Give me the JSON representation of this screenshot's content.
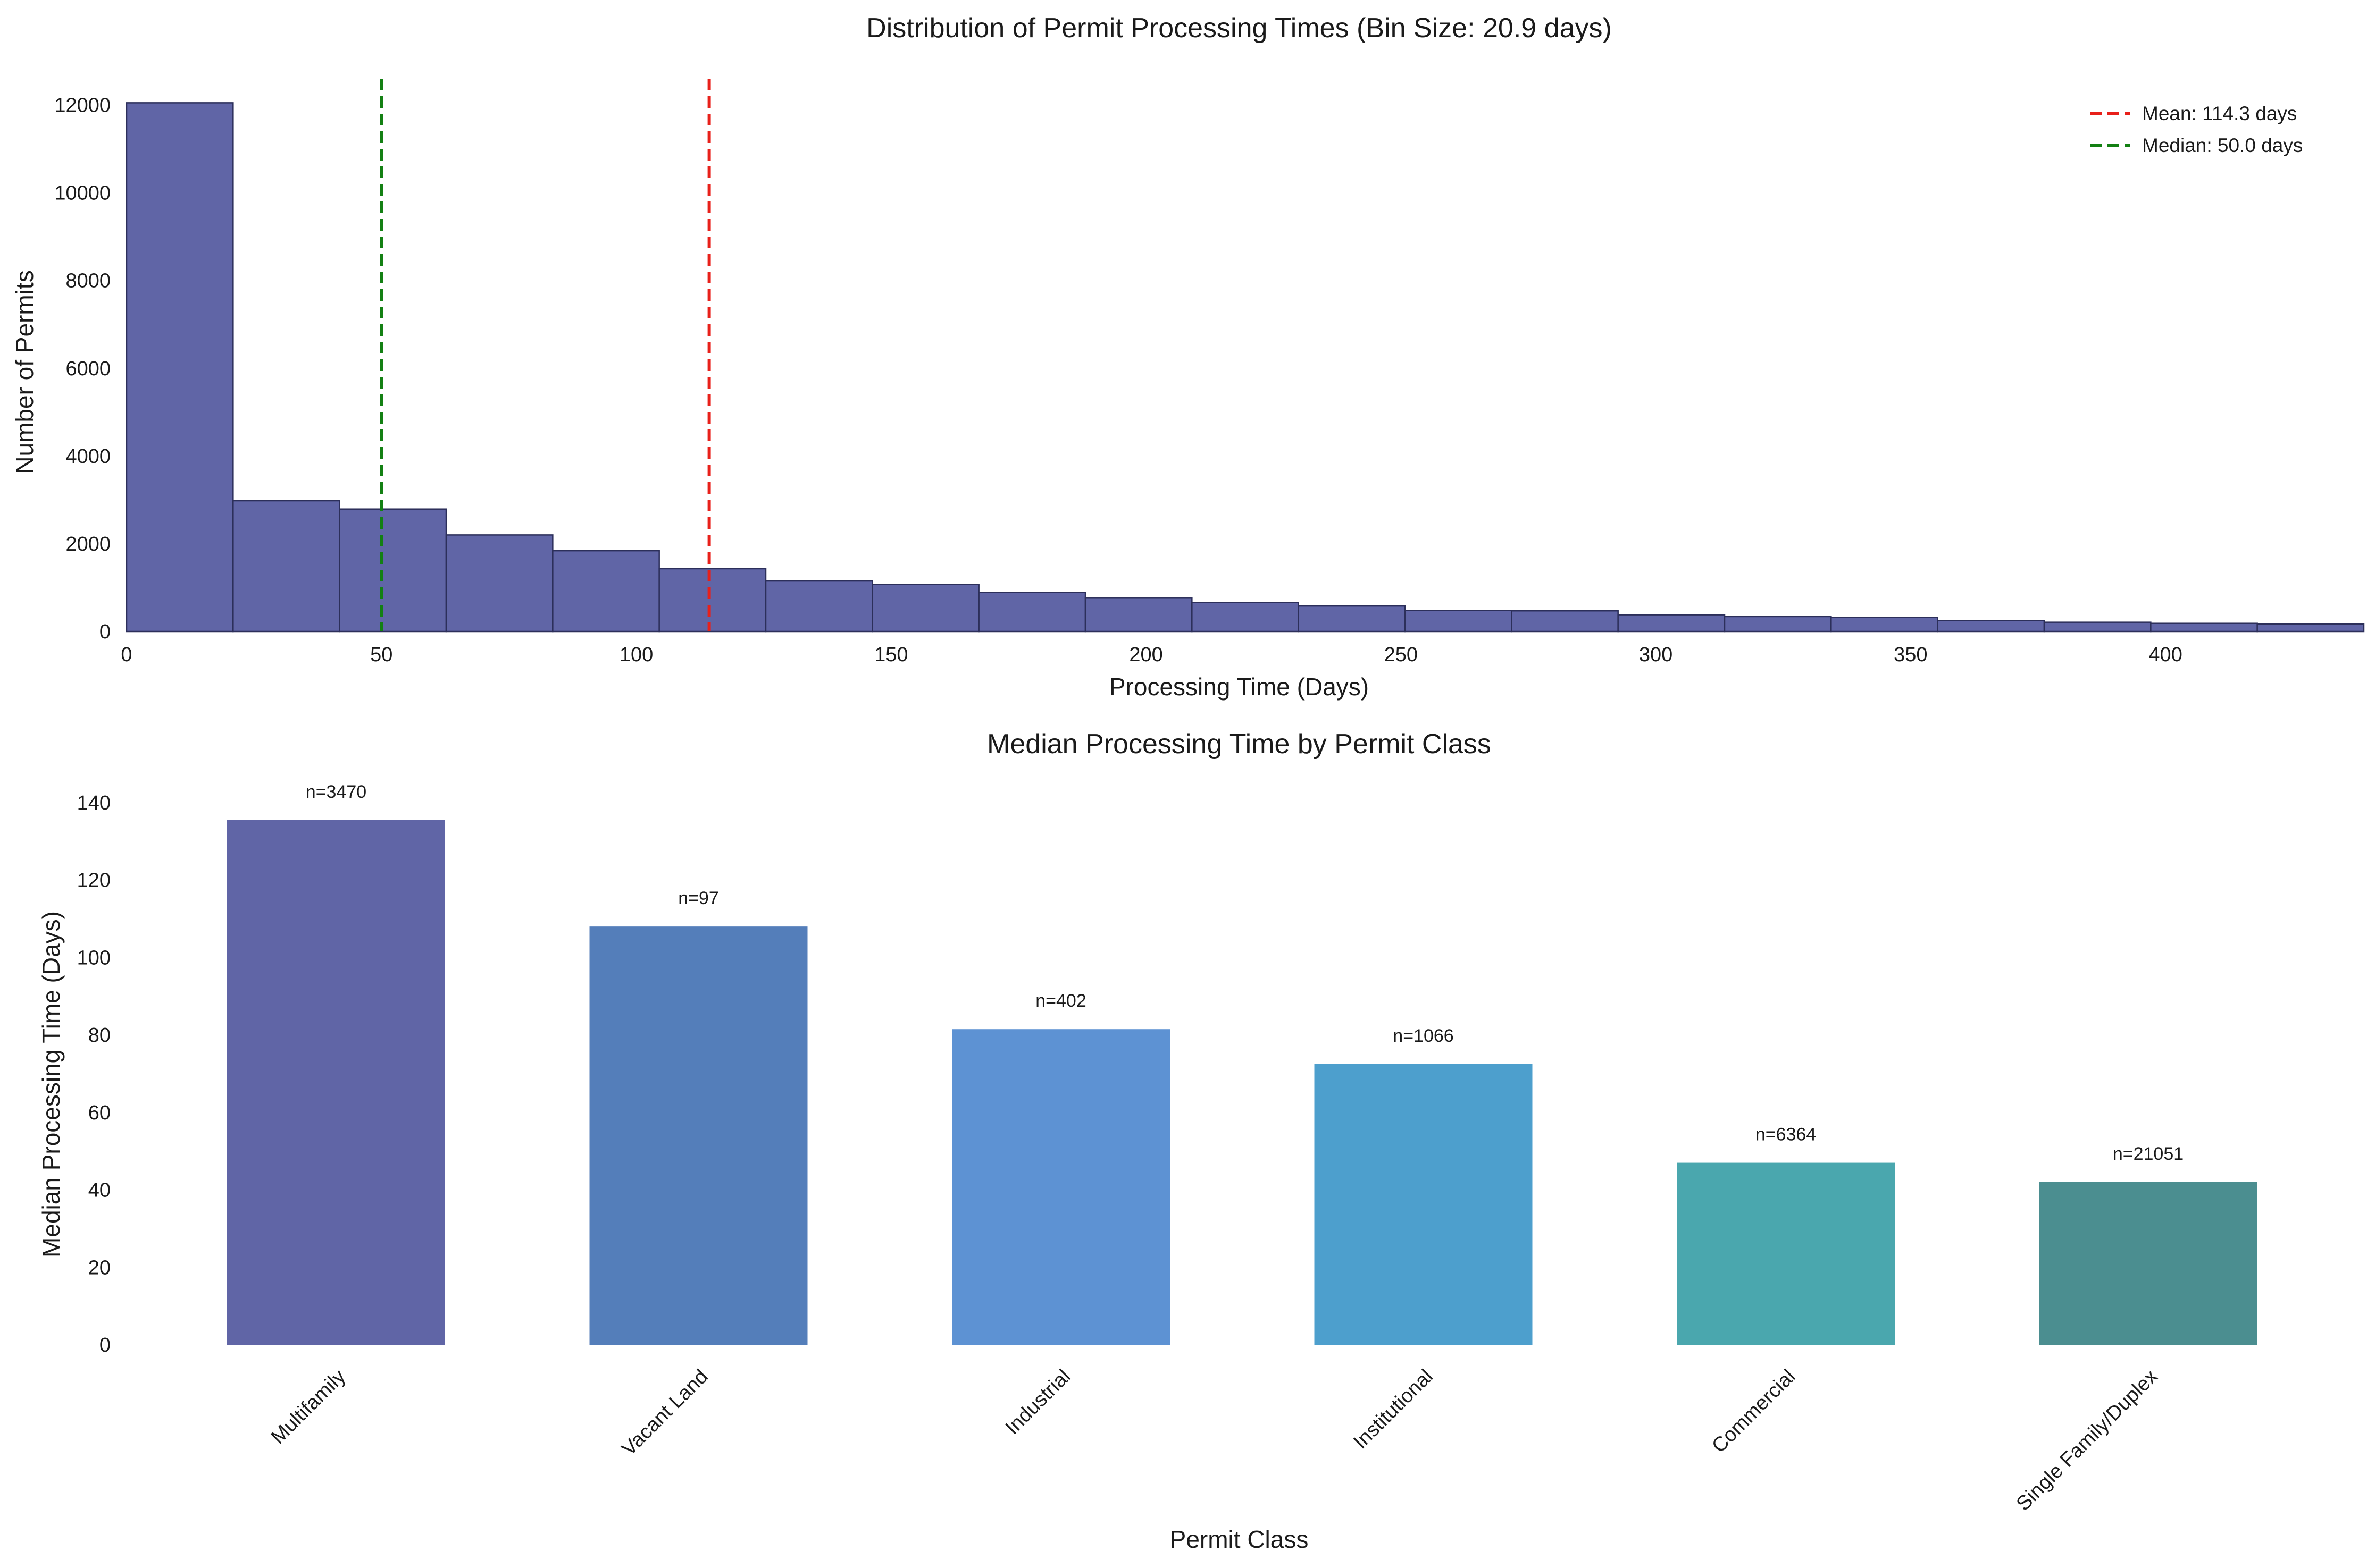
{
  "chart_data": [
    {
      "type": "bar",
      "subtype": "histogram",
      "title": "Distribution of Permit Processing Times (Bin Size: 20.9 days)",
      "xlabel": "Processing Time (Days)",
      "ylabel": "Number of Permits",
      "xlim": [
        0,
        438.9
      ],
      "ylim": [
        0,
        12600
      ],
      "xticks": [
        "0",
        "50",
        "100",
        "150",
        "200",
        "250",
        "300",
        "350",
        "400"
      ],
      "yticks": [
        "0",
        "2000",
        "4000",
        "6000",
        "8000",
        "10000",
        "12000"
      ],
      "grid": false,
      "bin_size": 20.9,
      "bin_edges": [
        0,
        20.9,
        41.8,
        62.7,
        83.6,
        104.5,
        125.4,
        146.3,
        167.2,
        188.1,
        209,
        229.9,
        250.8,
        271.7,
        292.6,
        313.5,
        334.4,
        355.3,
        376.2,
        397.1,
        418,
        438.9
      ],
      "counts": [
        12050,
        2980,
        2790,
        2200,
        1840,
        1430,
        1150,
        1070,
        890,
        760,
        660,
        580,
        480,
        470,
        380,
        340,
        320,
        250,
        210,
        185,
        170
      ],
      "bar_color": "#6065a6",
      "edge_color": "#2c2f5a",
      "vlines": [
        {
          "name": "Mean: 114.3 days",
          "x": 114.3,
          "color": "#e8201a"
        },
        {
          "name": "Median: 50.0 days",
          "x": 50.0,
          "color": "#138013"
        }
      ],
      "legend_position": "top-right"
    },
    {
      "type": "bar",
      "title": "Median Processing Time by Permit Class",
      "xlabel": "Permit Class",
      "ylabel": "Median Processing Time (Days)",
      "ylim": [
        0,
        140
      ],
      "yticks": [
        "0",
        "20",
        "40",
        "60",
        "80",
        "100",
        "120",
        "140"
      ],
      "grid": false,
      "categories": [
        "Multifamily",
        "Vacant Land",
        "Industrial",
        "Institutional",
        "Commercial",
        "Single Family/Duplex"
      ],
      "values": [
        135.5,
        108,
        81.5,
        72.5,
        47,
        42
      ],
      "annotations": [
        "n=3470",
        "n=97",
        "n=402",
        "n=1066",
        "n=6364",
        "n=21051"
      ],
      "colors": [
        "#6065a6",
        "#547eba",
        "#5d92d3",
        "#4d9fcd",
        "#4aa7ae",
        "#4b8e90"
      ]
    }
  ]
}
